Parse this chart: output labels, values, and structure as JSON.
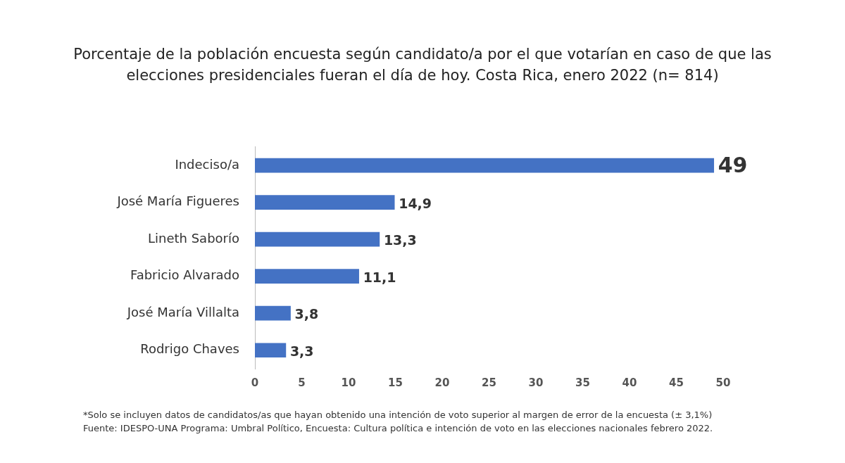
{
  "chart_data": {
    "type": "bar",
    "orientation": "horizontal",
    "title": "Porcentaje de la población encuesta según candidato/a por el que votarían en caso de que las elecciones presidenciales fueran el día de hoy. Costa Rica, enero 2022 (n= 814)",
    "categories": [
      "Indeciso/a",
      "José María Figueres",
      "Lineth Saborío",
      "Fabricio Alvarado",
      "José María Villalta",
      "Rodrigo Chaves"
    ],
    "values": [
      49,
      14.9,
      13.3,
      11.1,
      3.8,
      3.3
    ],
    "value_labels": [
      "49",
      "14,9",
      "13,3",
      "11,1",
      "3,8",
      "3,3"
    ],
    "color": "#4472c4",
    "xlim": [
      0,
      50
    ],
    "xticks": [
      0,
      5,
      10,
      15,
      20,
      25,
      30,
      35,
      40,
      45,
      50
    ],
    "grid": false,
    "legend": false,
    "annotations": [
      "*Solo se incluyen datos de candidatos/as que hayan obtenido una intención de voto superior al margen de error de la encuesta (± 3,1%)",
      "Fuente: IDESPO-UNA Programa: Umbral Político, Encuesta: Cultura política e intención de voto en las elecciones nacionales febrero 2022."
    ]
  }
}
